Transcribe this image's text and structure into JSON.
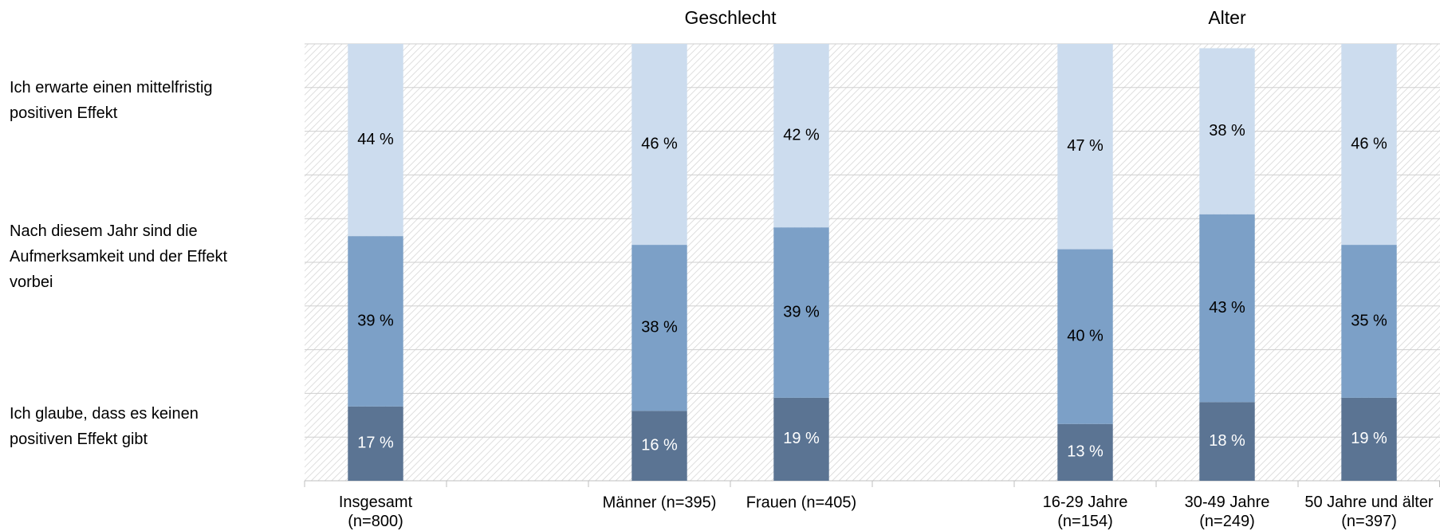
{
  "chart_data": {
    "type": "stacked_bar",
    "group_labels": [
      "Geschlecht",
      "Alter"
    ],
    "categories": [
      "Insgesamt\n(n=800)",
      null,
      "Männer (n=395)",
      "Frauen    (n=405)",
      null,
      "16-29 Jahre\n(n=154)",
      "30-49 Jahre\n(n=249)",
      "50 Jahre und älter\n(n=397)"
    ],
    "series": [
      {
        "name": "Ich glaube, dass es keinen positiven Effekt gibt",
        "color": "#5b7493",
        "label_color": "#ffffff",
        "values": [
          17,
          null,
          16,
          19,
          null,
          13,
          18,
          19
        ],
        "value_labels": [
          "17 %",
          null,
          "16 %",
          "19 %",
          null,
          "13 %",
          "18 %",
          "19 %"
        ]
      },
      {
        "name": "Nach diesem Jahr sind die Aufmerksamkeit und der Effekt vorbei",
        "color": "#7ca0c7",
        "label_color": "#000000",
        "values": [
          39,
          null,
          38,
          39,
          null,
          40,
          43,
          35
        ],
        "value_labels": [
          "39 %",
          null,
          "38 %",
          "39 %",
          null,
          "40 %",
          "43 %",
          "35 %"
        ]
      },
      {
        "name": "Ich erwarte einen mittelfristig positiven Effekt",
        "color": "#ccdcee",
        "label_color": "#000000",
        "values": [
          44,
          null,
          46,
          42,
          null,
          47,
          38,
          46
        ],
        "value_labels": [
          "44 %",
          null,
          "46 %",
          "42 %",
          null,
          "47 %",
          "38 %",
          "46 %"
        ]
      }
    ],
    "ylim": [
      0,
      100
    ],
    "yticks": [
      0,
      10,
      20,
      30,
      40,
      50,
      60,
      70,
      80,
      90,
      100
    ],
    "grid": true
  }
}
